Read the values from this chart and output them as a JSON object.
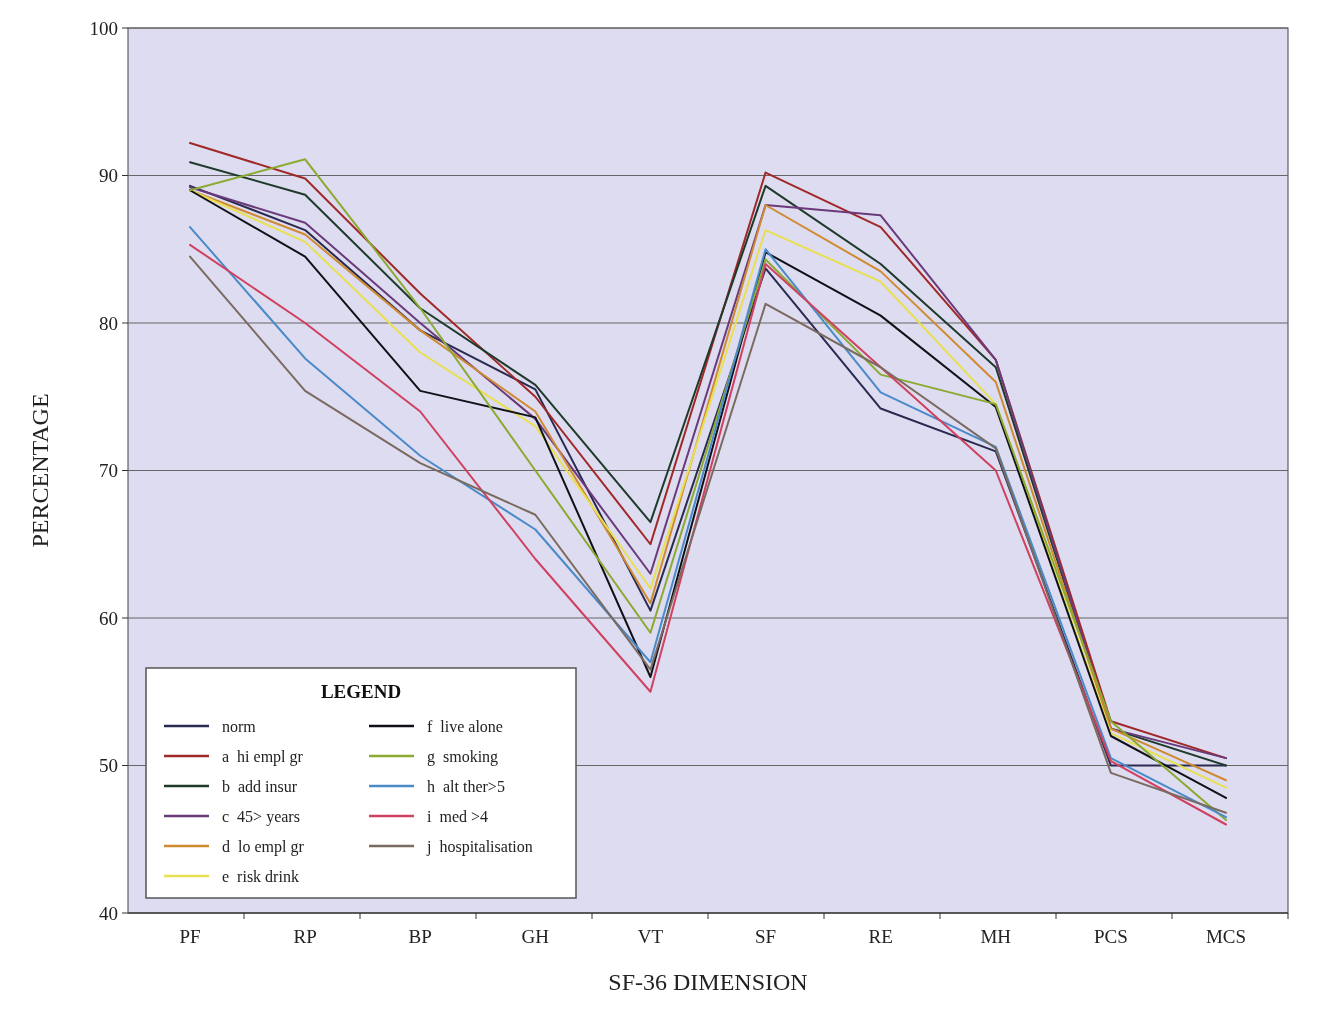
{
  "chart_data": {
    "type": "line",
    "xlabel": "SF-36 DIMENSION",
    "ylabel": "PERCENTAGE",
    "legend_title": "LEGEND",
    "legend": "bottom left",
    "grid": "y",
    "marker": "none",
    "line_style": "solid",
    "categories": [
      "PF",
      "RP",
      "BP",
      "GH",
      "VT",
      "SF",
      "RE",
      "MH",
      "PCS",
      "MCS"
    ],
    "ylim": [
      40,
      100
    ],
    "yticks": [
      40,
      50,
      60,
      70,
      80,
      90,
      100
    ],
    "series": [
      {
        "name": "norm",
        "color": "#2a2a50",
        "values": [
          89.3,
          86.3,
          79.5,
          75.5,
          60.5,
          83.7,
          74.2,
          71.3,
          50,
          50
        ]
      },
      {
        "name": "a  hi empl gr",
        "color": "#a02828",
        "values": [
          92.2,
          89.8,
          82,
          75,
          65,
          90.2,
          86.5,
          77.5,
          53,
          50.5
        ]
      },
      {
        "name": "b  add insur",
        "color": "#1e3a2a",
        "values": [
          90.9,
          88.7,
          81,
          75.8,
          66.5,
          89.3,
          84,
          77,
          52.5,
          50
        ]
      },
      {
        "name": "c  45> years",
        "color": "#6a3a7a",
        "values": [
          89.2,
          86.8,
          80,
          73.5,
          63,
          88,
          87.3,
          77.5,
          52.5,
          50.5
        ]
      },
      {
        "name": "d  lo empl gr",
        "color": "#d08a30",
        "values": [
          89,
          86,
          79.5,
          74,
          61,
          88,
          83.5,
          76,
          52.5,
          49
        ]
      },
      {
        "name": "e  risk drink",
        "color": "#e8e050",
        "values": [
          89,
          85.5,
          78,
          73,
          62,
          86.3,
          82.8,
          74.5,
          52.2,
          48.5
        ]
      },
      {
        "name": "f  live alone",
        "color": "#101018",
        "values": [
          89,
          84.5,
          75.4,
          73.6,
          56,
          84.8,
          80.5,
          74.3,
          52,
          47.8
        ]
      },
      {
        "name": "g  smoking",
        "color": "#8aaa30",
        "values": [
          89,
          91.1,
          81,
          70,
          59,
          84.3,
          76.5,
          74.5,
          53,
          46.3
        ]
      },
      {
        "name": "h  alt ther>5",
        "color": "#4a8ac8",
        "values": [
          86.5,
          77.6,
          71,
          66,
          57,
          85,
          75.3,
          71.6,
          50.5,
          46.5
        ]
      },
      {
        "name": "i  med >4",
        "color": "#d04060",
        "values": [
          85.3,
          80,
          74,
          64,
          55,
          84,
          77,
          70,
          50.3,
          46
        ]
      },
      {
        "name": "j  hospitalisation",
        "color": "#7a6a60",
        "values": [
          84.5,
          75.4,
          70.5,
          67,
          56.5,
          81.3,
          77,
          71.5,
          49.5,
          46.8
        ]
      }
    ]
  }
}
